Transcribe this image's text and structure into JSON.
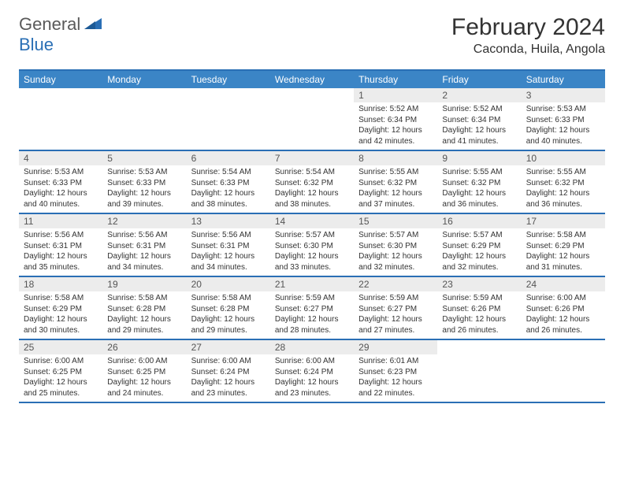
{
  "logo": {
    "part1": "General",
    "part2": "Blue"
  },
  "title": "February 2024",
  "location": "Caconda, Huila, Angola",
  "colors": {
    "header_bg": "#3b85c6",
    "border": "#2a6fb5",
    "daynum_bg": "#ececec",
    "text": "#333333",
    "logo_gray": "#5a5a5a",
    "logo_blue": "#2a6fb5"
  },
  "weekdays": [
    "Sunday",
    "Monday",
    "Tuesday",
    "Wednesday",
    "Thursday",
    "Friday",
    "Saturday"
  ],
  "weeks": [
    [
      {
        "empty": true
      },
      {
        "empty": true
      },
      {
        "empty": true
      },
      {
        "empty": true
      },
      {
        "day": "1",
        "sunrise": "Sunrise: 5:52 AM",
        "sunset": "Sunset: 6:34 PM",
        "daylight1": "Daylight: 12 hours",
        "daylight2": "and 42 minutes."
      },
      {
        "day": "2",
        "sunrise": "Sunrise: 5:52 AM",
        "sunset": "Sunset: 6:34 PM",
        "daylight1": "Daylight: 12 hours",
        "daylight2": "and 41 minutes."
      },
      {
        "day": "3",
        "sunrise": "Sunrise: 5:53 AM",
        "sunset": "Sunset: 6:33 PM",
        "daylight1": "Daylight: 12 hours",
        "daylight2": "and 40 minutes."
      }
    ],
    [
      {
        "day": "4",
        "sunrise": "Sunrise: 5:53 AM",
        "sunset": "Sunset: 6:33 PM",
        "daylight1": "Daylight: 12 hours",
        "daylight2": "and 40 minutes."
      },
      {
        "day": "5",
        "sunrise": "Sunrise: 5:53 AM",
        "sunset": "Sunset: 6:33 PM",
        "daylight1": "Daylight: 12 hours",
        "daylight2": "and 39 minutes."
      },
      {
        "day": "6",
        "sunrise": "Sunrise: 5:54 AM",
        "sunset": "Sunset: 6:33 PM",
        "daylight1": "Daylight: 12 hours",
        "daylight2": "and 38 minutes."
      },
      {
        "day": "7",
        "sunrise": "Sunrise: 5:54 AM",
        "sunset": "Sunset: 6:32 PM",
        "daylight1": "Daylight: 12 hours",
        "daylight2": "and 38 minutes."
      },
      {
        "day": "8",
        "sunrise": "Sunrise: 5:55 AM",
        "sunset": "Sunset: 6:32 PM",
        "daylight1": "Daylight: 12 hours",
        "daylight2": "and 37 minutes."
      },
      {
        "day": "9",
        "sunrise": "Sunrise: 5:55 AM",
        "sunset": "Sunset: 6:32 PM",
        "daylight1": "Daylight: 12 hours",
        "daylight2": "and 36 minutes."
      },
      {
        "day": "10",
        "sunrise": "Sunrise: 5:55 AM",
        "sunset": "Sunset: 6:32 PM",
        "daylight1": "Daylight: 12 hours",
        "daylight2": "and 36 minutes."
      }
    ],
    [
      {
        "day": "11",
        "sunrise": "Sunrise: 5:56 AM",
        "sunset": "Sunset: 6:31 PM",
        "daylight1": "Daylight: 12 hours",
        "daylight2": "and 35 minutes."
      },
      {
        "day": "12",
        "sunrise": "Sunrise: 5:56 AM",
        "sunset": "Sunset: 6:31 PM",
        "daylight1": "Daylight: 12 hours",
        "daylight2": "and 34 minutes."
      },
      {
        "day": "13",
        "sunrise": "Sunrise: 5:56 AM",
        "sunset": "Sunset: 6:31 PM",
        "daylight1": "Daylight: 12 hours",
        "daylight2": "and 34 minutes."
      },
      {
        "day": "14",
        "sunrise": "Sunrise: 5:57 AM",
        "sunset": "Sunset: 6:30 PM",
        "daylight1": "Daylight: 12 hours",
        "daylight2": "and 33 minutes."
      },
      {
        "day": "15",
        "sunrise": "Sunrise: 5:57 AM",
        "sunset": "Sunset: 6:30 PM",
        "daylight1": "Daylight: 12 hours",
        "daylight2": "and 32 minutes."
      },
      {
        "day": "16",
        "sunrise": "Sunrise: 5:57 AM",
        "sunset": "Sunset: 6:29 PM",
        "daylight1": "Daylight: 12 hours",
        "daylight2": "and 32 minutes."
      },
      {
        "day": "17",
        "sunrise": "Sunrise: 5:58 AM",
        "sunset": "Sunset: 6:29 PM",
        "daylight1": "Daylight: 12 hours",
        "daylight2": "and 31 minutes."
      }
    ],
    [
      {
        "day": "18",
        "sunrise": "Sunrise: 5:58 AM",
        "sunset": "Sunset: 6:29 PM",
        "daylight1": "Daylight: 12 hours",
        "daylight2": "and 30 minutes."
      },
      {
        "day": "19",
        "sunrise": "Sunrise: 5:58 AM",
        "sunset": "Sunset: 6:28 PM",
        "daylight1": "Daylight: 12 hours",
        "daylight2": "and 29 minutes."
      },
      {
        "day": "20",
        "sunrise": "Sunrise: 5:58 AM",
        "sunset": "Sunset: 6:28 PM",
        "daylight1": "Daylight: 12 hours",
        "daylight2": "and 29 minutes."
      },
      {
        "day": "21",
        "sunrise": "Sunrise: 5:59 AM",
        "sunset": "Sunset: 6:27 PM",
        "daylight1": "Daylight: 12 hours",
        "daylight2": "and 28 minutes."
      },
      {
        "day": "22",
        "sunrise": "Sunrise: 5:59 AM",
        "sunset": "Sunset: 6:27 PM",
        "daylight1": "Daylight: 12 hours",
        "daylight2": "and 27 minutes."
      },
      {
        "day": "23",
        "sunrise": "Sunrise: 5:59 AM",
        "sunset": "Sunset: 6:26 PM",
        "daylight1": "Daylight: 12 hours",
        "daylight2": "and 26 minutes."
      },
      {
        "day": "24",
        "sunrise": "Sunrise: 6:00 AM",
        "sunset": "Sunset: 6:26 PM",
        "daylight1": "Daylight: 12 hours",
        "daylight2": "and 26 minutes."
      }
    ],
    [
      {
        "day": "25",
        "sunrise": "Sunrise: 6:00 AM",
        "sunset": "Sunset: 6:25 PM",
        "daylight1": "Daylight: 12 hours",
        "daylight2": "and 25 minutes."
      },
      {
        "day": "26",
        "sunrise": "Sunrise: 6:00 AM",
        "sunset": "Sunset: 6:25 PM",
        "daylight1": "Daylight: 12 hours",
        "daylight2": "and 24 minutes."
      },
      {
        "day": "27",
        "sunrise": "Sunrise: 6:00 AM",
        "sunset": "Sunset: 6:24 PM",
        "daylight1": "Daylight: 12 hours",
        "daylight2": "and 23 minutes."
      },
      {
        "day": "28",
        "sunrise": "Sunrise: 6:00 AM",
        "sunset": "Sunset: 6:24 PM",
        "daylight1": "Daylight: 12 hours",
        "daylight2": "and 23 minutes."
      },
      {
        "day": "29",
        "sunrise": "Sunrise: 6:01 AM",
        "sunset": "Sunset: 6:23 PM",
        "daylight1": "Daylight: 12 hours",
        "daylight2": "and 22 minutes."
      },
      {
        "empty": true
      },
      {
        "empty": true
      }
    ]
  ]
}
